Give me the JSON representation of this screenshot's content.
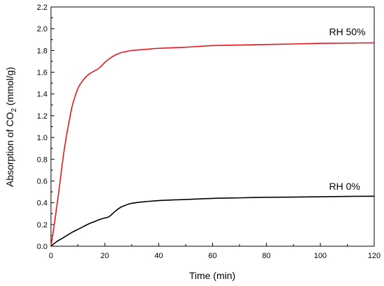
{
  "chart_data": {
    "type": "line",
    "title": "",
    "xlabel": "Time (min)",
    "ylabel": {
      "prefix": "Absorption of CO",
      "subscript": "2",
      "suffix": " (mmol/g)"
    },
    "xlim": [
      0,
      120
    ],
    "ylim": [
      0,
      2.2
    ],
    "xticks": [
      "0",
      "20",
      "40",
      "60",
      "80",
      "100",
      "120"
    ],
    "xtick_values": [
      0,
      20,
      40,
      60,
      80,
      100,
      120
    ],
    "yticks": [
      "0.0",
      "0.2",
      "0.4",
      "0.6",
      "0.8",
      "1.0",
      "1.2",
      "1.4",
      "1.6",
      "1.8",
      "2.0",
      "2.2"
    ],
    "ytick_values": [
      0,
      0.2,
      0.4,
      0.6,
      0.8,
      1.0,
      1.2,
      1.4,
      1.6,
      1.8,
      2.0,
      2.2
    ],
    "grid": false,
    "legend": "none",
    "series": [
      {
        "name": "RH 50%",
        "color": "#e8161b",
        "x": [
          0,
          1,
          2,
          3,
          4,
          5,
          6,
          7,
          8,
          10,
          12,
          14,
          16,
          18,
          20,
          22,
          24,
          26,
          28,
          30,
          35,
          40,
          50,
          60,
          70,
          80,
          90,
          100,
          110,
          120
        ],
        "y": [
          0.0,
          0.16,
          0.34,
          0.52,
          0.72,
          0.9,
          1.05,
          1.18,
          1.3,
          1.45,
          1.53,
          1.58,
          1.61,
          1.64,
          1.69,
          1.73,
          1.76,
          1.78,
          1.79,
          1.8,
          1.81,
          1.82,
          1.83,
          1.845,
          1.85,
          1.855,
          1.86,
          1.865,
          1.868,
          1.87
        ],
        "label_at": [
          110,
          1.94
        ]
      },
      {
        "name": "RH 0%",
        "color": "#000000",
        "x": [
          0,
          2,
          4,
          6,
          8,
          10,
          12,
          14,
          16,
          18,
          20,
          21,
          22,
          24,
          26,
          28,
          30,
          35,
          40,
          50,
          60,
          70,
          80,
          90,
          100,
          110,
          120
        ],
        "y": [
          0.0,
          0.04,
          0.07,
          0.1,
          0.13,
          0.155,
          0.18,
          0.205,
          0.225,
          0.245,
          0.26,
          0.265,
          0.28,
          0.325,
          0.36,
          0.38,
          0.395,
          0.41,
          0.42,
          0.43,
          0.44,
          0.445,
          0.45,
          0.452,
          0.455,
          0.458,
          0.46
        ],
        "label_at": [
          109,
          0.52
        ]
      }
    ]
  }
}
